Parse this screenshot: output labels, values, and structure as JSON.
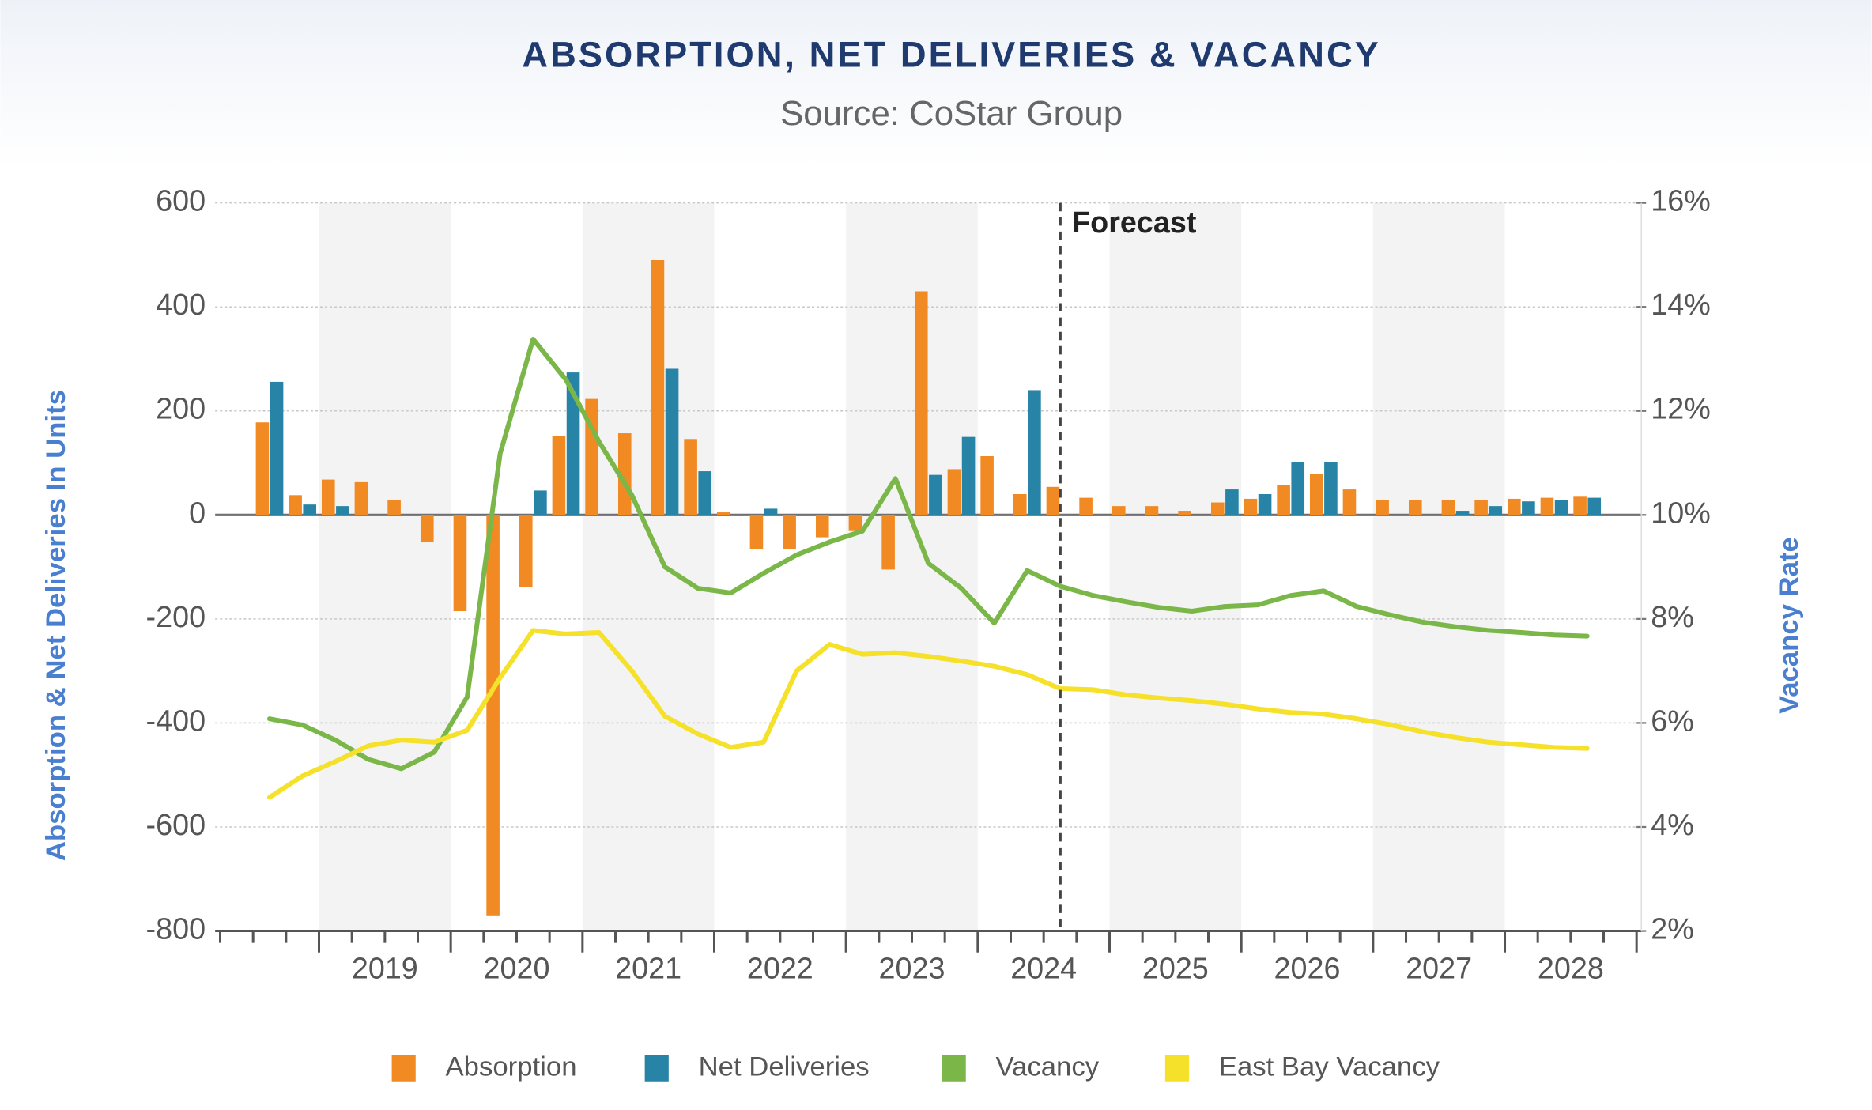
{
  "chart_data": {
    "type": "combo",
    "title": "ABSORPTION, NET DELIVERIES & VACANCY",
    "subtitle": "Source: CoStar Group",
    "y_label": "Absorption & Net Deliveries In Units",
    "y2_label": "Vacancy Rate",
    "annotation": "Forecast",
    "categories": [
      null,
      null,
      null,
      null,
      null,
      null,
      null,
      null,
      null,
      null,
      null,
      null,
      null,
      null,
      null,
      null,
      null,
      null,
      null,
      null,
      null,
      null,
      null,
      null,
      null,
      null,
      null,
      null,
      null,
      null,
      null,
      null,
      null,
      null,
      null,
      null,
      null,
      null,
      null,
      null,
      null
    ],
    "year_labels": [
      "2019",
      "2020",
      "2021",
      "2022",
      "2023",
      "2024",
      "2025",
      "2026",
      "2027",
      "2028"
    ],
    "ylim": [
      -800,
      600
    ],
    "yticks": [
      -800,
      -600,
      -400,
      -200,
      0,
      200,
      400,
      600
    ],
    "y2lim": [
      2,
      16
    ],
    "y2ticks": [
      {
        "value": 2,
        "label": "2%"
      },
      {
        "value": 4,
        "label": "4%"
      },
      {
        "value": 6,
        "label": "6%"
      },
      {
        "value": 8,
        "label": "8%"
      },
      {
        "value": 10,
        "label": "10%"
      },
      {
        "value": 12,
        "label": "12%"
      },
      {
        "value": 14,
        "label": "14%"
      },
      {
        "value": 16,
        "label": "16%"
      }
    ],
    "grid": true,
    "legend": "bottom",
    "series": [
      {
        "name": "Absorption",
        "type": "bar",
        "color": "#f28a24",
        "values": [
          178,
          38,
          68,
          63,
          28,
          -52,
          -185,
          -770,
          -139,
          152,
          223,
          157,
          490,
          146,
          5,
          -65,
          -65,
          -43,
          -31,
          -105,
          430,
          88,
          113,
          40,
          54,
          33,
          17,
          17,
          8,
          24,
          31,
          58,
          79,
          49,
          28,
          28,
          28,
          28,
          31,
          33,
          35
        ]
      },
      {
        "name": "Net Deliveries",
        "type": "bar",
        "color": "#2784a6",
        "values": [
          256,
          20,
          17,
          0,
          0,
          0,
          0,
          0,
          47,
          274,
          0,
          0,
          281,
          84,
          0,
          12,
          0,
          0,
          0,
          0,
          77,
          150,
          0,
          240,
          0,
          0,
          0,
          0,
          0,
          49,
          40,
          102,
          102,
          0,
          0,
          0,
          8,
          17,
          26,
          28,
          33
        ]
      },
      {
        "name": "Vacancy",
        "type": "line",
        "axis": "y2",
        "color": "#7ab648",
        "values": [
          6.08,
          5.96,
          5.67,
          5.3,
          5.12,
          5.44,
          6.5,
          11.18,
          13.38,
          12.6,
          11.41,
          10.38,
          9.0,
          8.59,
          8.5,
          8.88,
          9.23,
          9.48,
          9.69,
          10.7,
          9.07,
          8.59,
          7.92,
          8.93,
          8.63,
          8.45,
          8.33,
          8.22,
          8.15,
          8.24,
          8.27,
          8.45,
          8.54,
          8.24,
          8.08,
          7.94,
          7.85,
          7.78,
          7.74,
          7.69,
          7.67
        ]
      },
      {
        "name": "East Bay Vacancy",
        "type": "line",
        "axis": "y2",
        "color": "#f5e12a",
        "values": [
          4.57,
          4.98,
          5.26,
          5.56,
          5.67,
          5.63,
          5.86,
          6.87,
          7.78,
          7.71,
          7.74,
          7.0,
          6.13,
          5.79,
          5.53,
          5.63,
          7.0,
          7.51,
          7.32,
          7.35,
          7.28,
          7.19,
          7.09,
          6.93,
          6.66,
          6.64,
          6.54,
          6.48,
          6.43,
          6.36,
          6.27,
          6.2,
          6.17,
          6.08,
          5.97,
          5.83,
          5.72,
          5.63,
          5.58,
          5.53,
          5.51
        ]
      }
    ]
  }
}
